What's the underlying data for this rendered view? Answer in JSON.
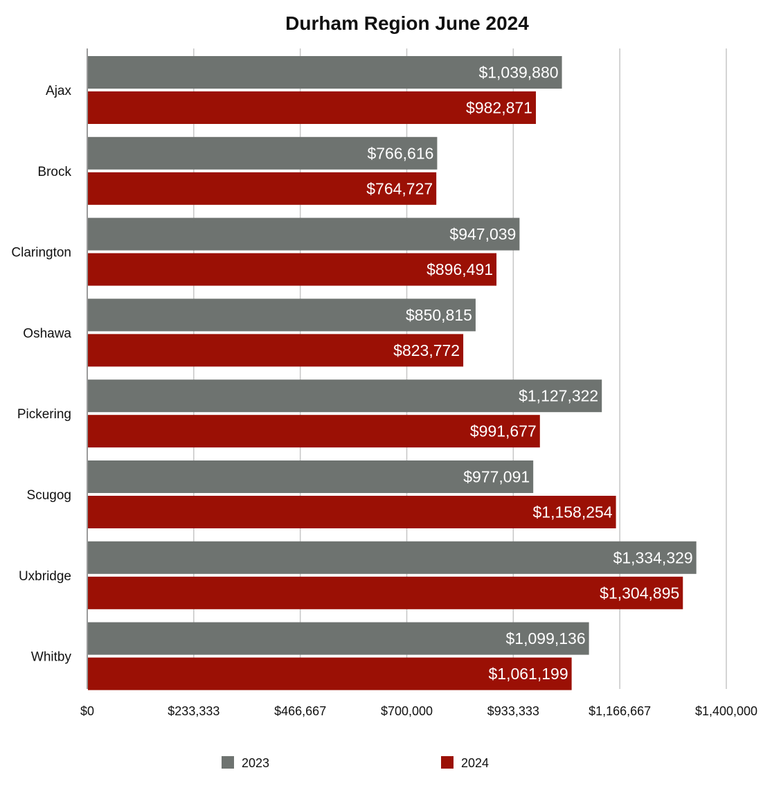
{
  "chart_data": {
    "type": "bar",
    "orientation": "horizontal",
    "title": "Durham Region June 2024",
    "xlabel": "",
    "ylabel": "",
    "categories": [
      "Ajax",
      "Brock",
      "Clarington",
      "Oshawa",
      "Pickering",
      "Scugog",
      "Uxbridge",
      "Whitby"
    ],
    "series": [
      {
        "name": "2023",
        "color": "#6e7370",
        "values": [
          1039880,
          766616,
          947039,
          850815,
          1127322,
          977091,
          1334329,
          1099136
        ],
        "labels": [
          "$1,039,880",
          "$766,616",
          "$947,039",
          "$850,815",
          "$1,127,322",
          "$977,091",
          "$1,334,329",
          "$1,099,136"
        ]
      },
      {
        "name": "2024",
        "color": "#9b1005",
        "values": [
          982871,
          764727,
          896491,
          823772,
          991677,
          1158254,
          1304895,
          1061199
        ],
        "labels": [
          "$982,871",
          "$764,727",
          "$896,491",
          "$823,772",
          "$991,677",
          "$1,158,254",
          "$1,304,895",
          "$1,061,199"
        ]
      }
    ],
    "xlim": [
      0,
      1400000
    ],
    "ticks": [
      0,
      233333,
      466667,
      700000,
      933333,
      1166667,
      1400000
    ],
    "tick_labels": [
      "$0",
      "$233,333",
      "$466,667",
      "$700,000",
      "$933,333",
      "$1,166,667",
      "$1,400,000"
    ],
    "grid": true,
    "legend_position": "bottom"
  }
}
